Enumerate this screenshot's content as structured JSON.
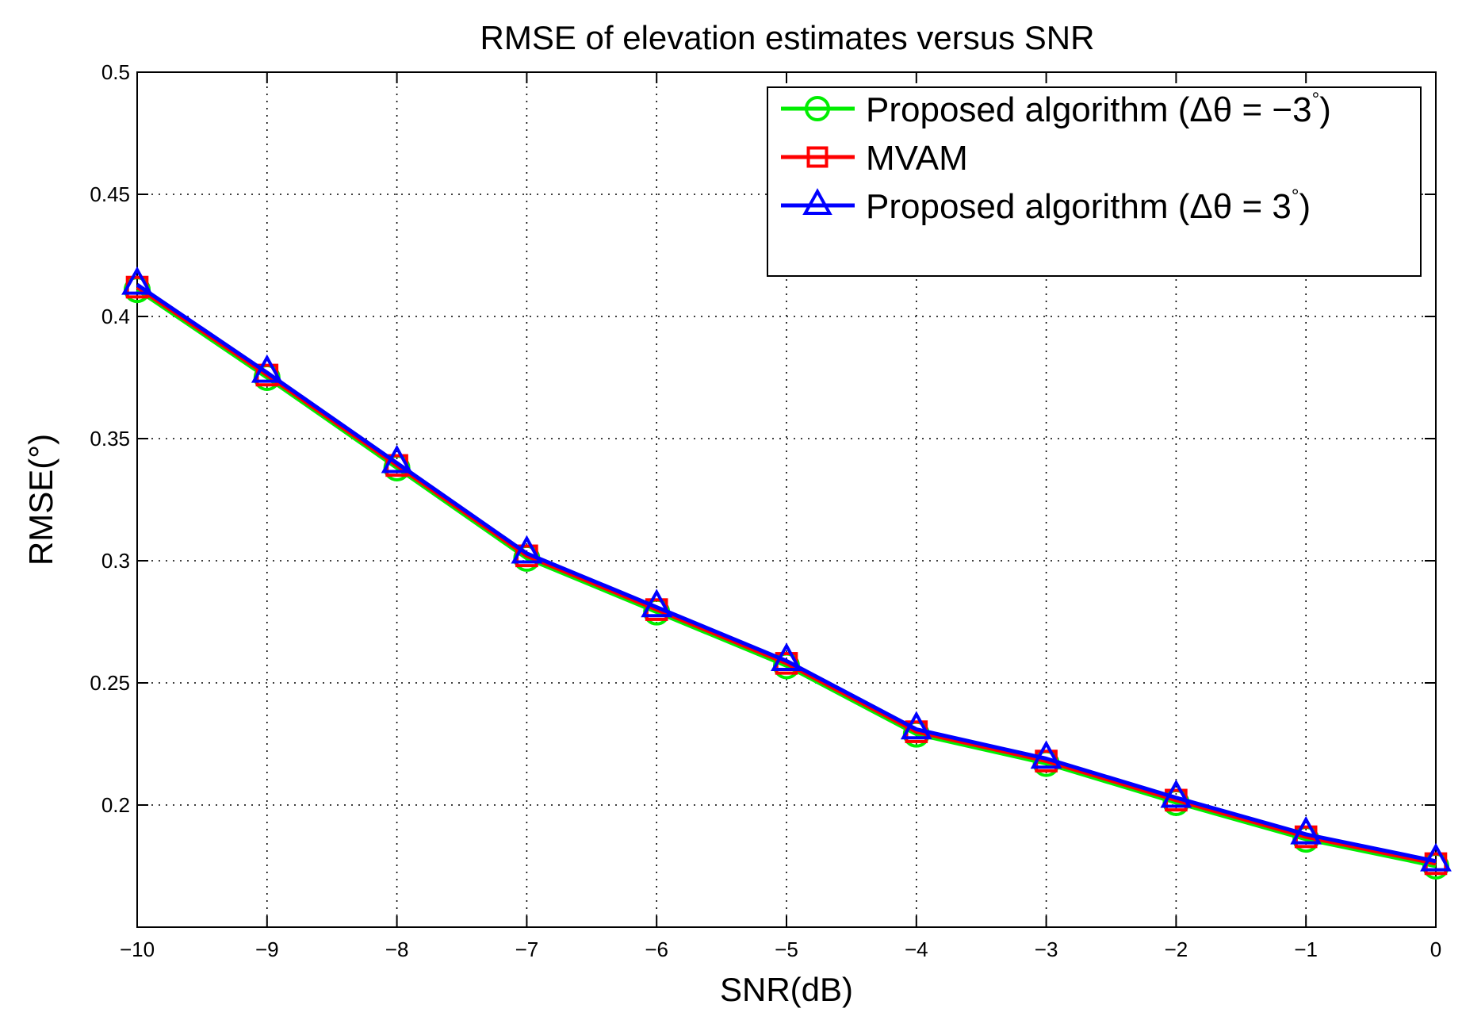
{
  "chart_data": {
    "type": "line",
    "title": "RMSE of elevation estimates versus SNR",
    "xlabel": "SNR(dB)",
    "ylabel": "RMSE(°)",
    "xlim": [
      -10,
      0
    ],
    "ylim": [
      0.15,
      0.5
    ],
    "x_ticks": [
      -10,
      -9,
      -8,
      -7,
      -6,
      -5,
      -4,
      -3,
      -2,
      -1,
      0
    ],
    "x_tick_labels": [
      "−10",
      "−9",
      "−8",
      "−7",
      "−6",
      "−5",
      "−4",
      "−3",
      "−2",
      "−1",
      "0"
    ],
    "y_ticks": [
      0.2,
      0.25,
      0.3,
      0.35,
      0.4,
      0.45,
      0.5
    ],
    "y_tick_labels": [
      "0.2",
      "0.25",
      "0.3",
      "0.35",
      "0.4",
      "0.45",
      "0.5"
    ],
    "grid": true,
    "legend_position": "top-right",
    "x": [
      -10,
      -9,
      -8,
      -7,
      -6,
      -5,
      -4,
      -3,
      -2,
      -1,
      0
    ],
    "series": [
      {
        "name": "Proposed algorithm (Δθ = −3°)",
        "legend_main": "Proposed algorithm (Δθ = −3",
        "legend_sup": "°",
        "legend_tail": ")",
        "color": "#00ee00",
        "marker": "circle",
        "values": [
          0.411,
          0.375,
          0.338,
          0.301,
          0.279,
          0.257,
          0.229,
          0.217,
          0.201,
          0.186,
          0.175
        ]
      },
      {
        "name": "MVAM",
        "legend_main": "MVAM",
        "legend_sup": "",
        "legend_tail": "",
        "color": "#ff0000",
        "marker": "square",
        "values": [
          0.412,
          0.376,
          0.339,
          0.302,
          0.28,
          0.258,
          0.23,
          0.218,
          0.202,
          0.187,
          0.176
        ]
      },
      {
        "name": "Proposed algorithm (Δθ = 3°)",
        "legend_main": "Proposed algorithm (Δθ = 3",
        "legend_sup": "°",
        "legend_tail": ")",
        "color": "#0000ff",
        "marker": "triangle",
        "values": [
          0.413,
          0.377,
          0.34,
          0.303,
          0.281,
          0.259,
          0.231,
          0.219,
          0.203,
          0.188,
          0.177
        ]
      }
    ]
  },
  "colors": {
    "grid": "#000000",
    "axes": "#000000",
    "background": "#ffffff"
  }
}
